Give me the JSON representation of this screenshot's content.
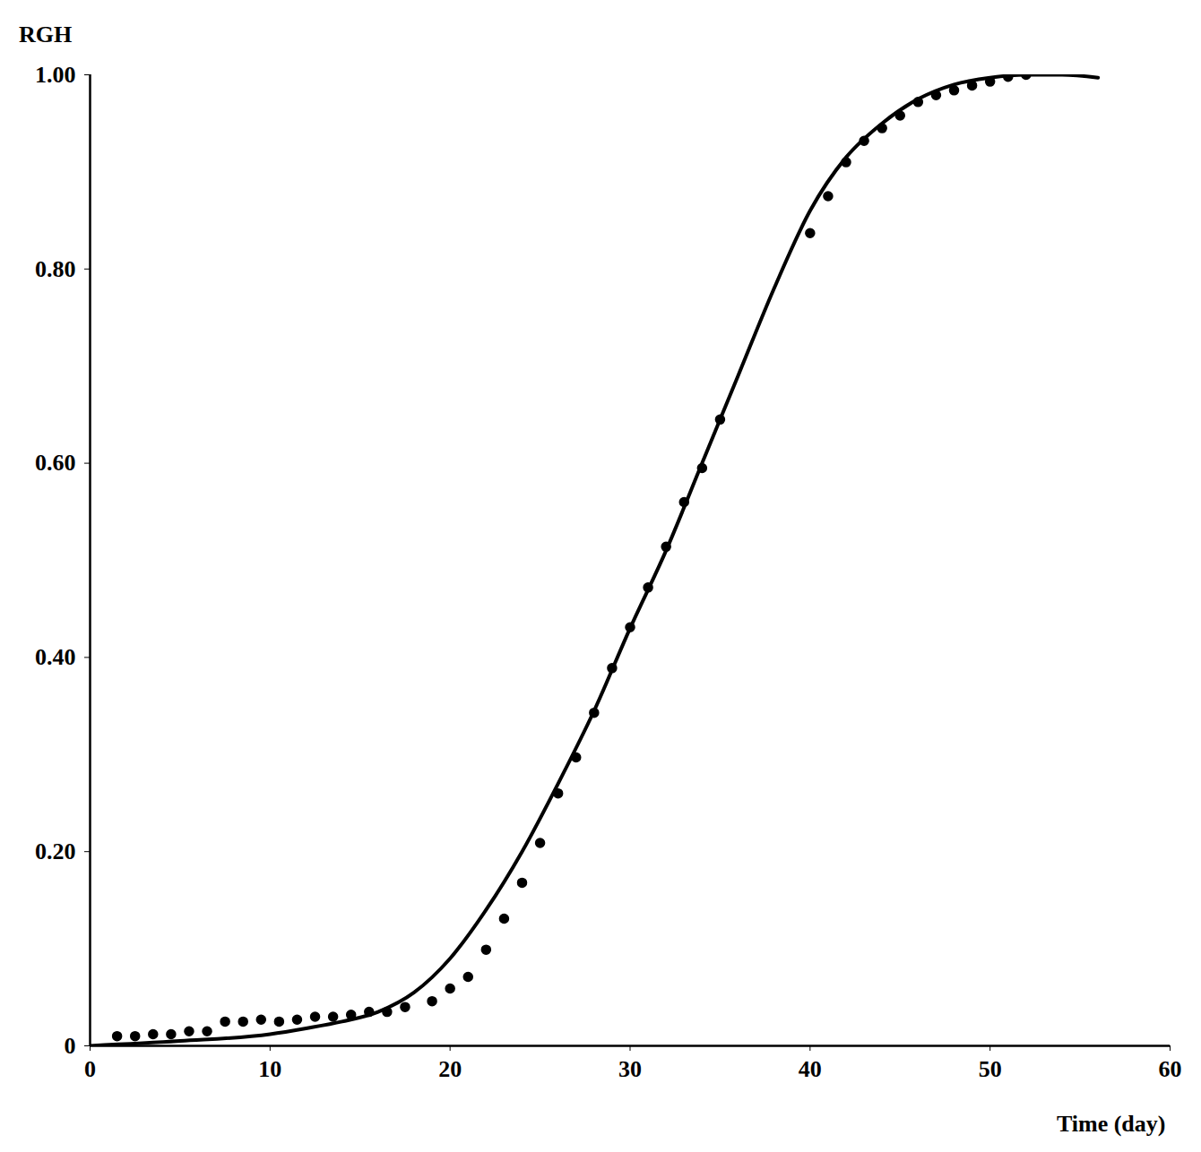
{
  "chart_data": {
    "type": "line",
    "x_label": "Time (day)",
    "y_label": "RGH",
    "xlim": [
      0,
      60
    ],
    "xticks": [
      0,
      10,
      20,
      30,
      40,
      50,
      60
    ],
    "ylim": [
      0,
      1
    ],
    "yticks": [
      0,
      {
        "value": 0.2,
        "label": "0.20"
      },
      {
        "value": 0.4,
        "label": "0.40"
      },
      {
        "value": 0.6,
        "label": "0.60"
      },
      {
        "value": 0.8,
        "label": "0.80"
      },
      {
        "value": 1,
        "label": "1.00"
      }
    ],
    "grid": false,
    "series": [
      {
        "type": "scatter",
        "color": "#000000",
        "marker": "circle",
        "x": [
          1.5,
          2.5,
          3.5,
          4.5,
          5.5,
          6.5,
          7.5,
          8.5,
          9.5,
          10.5,
          11.5,
          12.5,
          13.5,
          14.5,
          15.5,
          16.5,
          17.5,
          19,
          20,
          21,
          22,
          23,
          24,
          25,
          26,
          27,
          28,
          29,
          30,
          31,
          32,
          33,
          34,
          35,
          40,
          41,
          42,
          43,
          44,
          45,
          46,
          47,
          48,
          49,
          50,
          51,
          52
        ],
        "values": [
          0.01,
          0.01,
          0.012,
          0.012,
          0.015,
          0.015,
          0.025,
          0.025,
          0.027,
          0.025,
          0.027,
          0.03,
          0.03,
          0.032,
          0.035,
          0.035,
          0.04,
          0.046,
          0.059,
          0.071,
          0.099,
          0.131,
          0.168,
          0.209,
          0.26,
          0.297,
          0.343,
          0.389,
          0.431,
          0.472,
          0.514,
          0.56,
          0.595,
          0.645,
          0.837,
          0.875,
          0.91,
          0.932,
          0.945,
          0.958,
          0.972,
          0.979,
          0.984,
          0.989,
          0.993,
          0.998,
          1.0
        ]
      },
      {
        "type": "line",
        "color": "#000000",
        "line_style": "solid",
        "x": [
          0,
          5,
          10,
          12,
          14,
          16,
          18,
          20,
          22,
          24,
          26,
          28,
          30,
          32,
          34,
          36,
          38,
          40,
          42,
          44,
          46,
          48,
          50,
          52,
          54,
          56
        ],
        "values": [
          0.0,
          0.005,
          0.012,
          0.018,
          0.025,
          0.035,
          0.055,
          0.09,
          0.14,
          0.2,
          0.27,
          0.345,
          0.43,
          0.51,
          0.6,
          0.69,
          0.78,
          0.86,
          0.915,
          0.95,
          0.975,
          0.99,
          0.997,
          1.0,
          1.0,
          0.997
        ]
      }
    ]
  }
}
